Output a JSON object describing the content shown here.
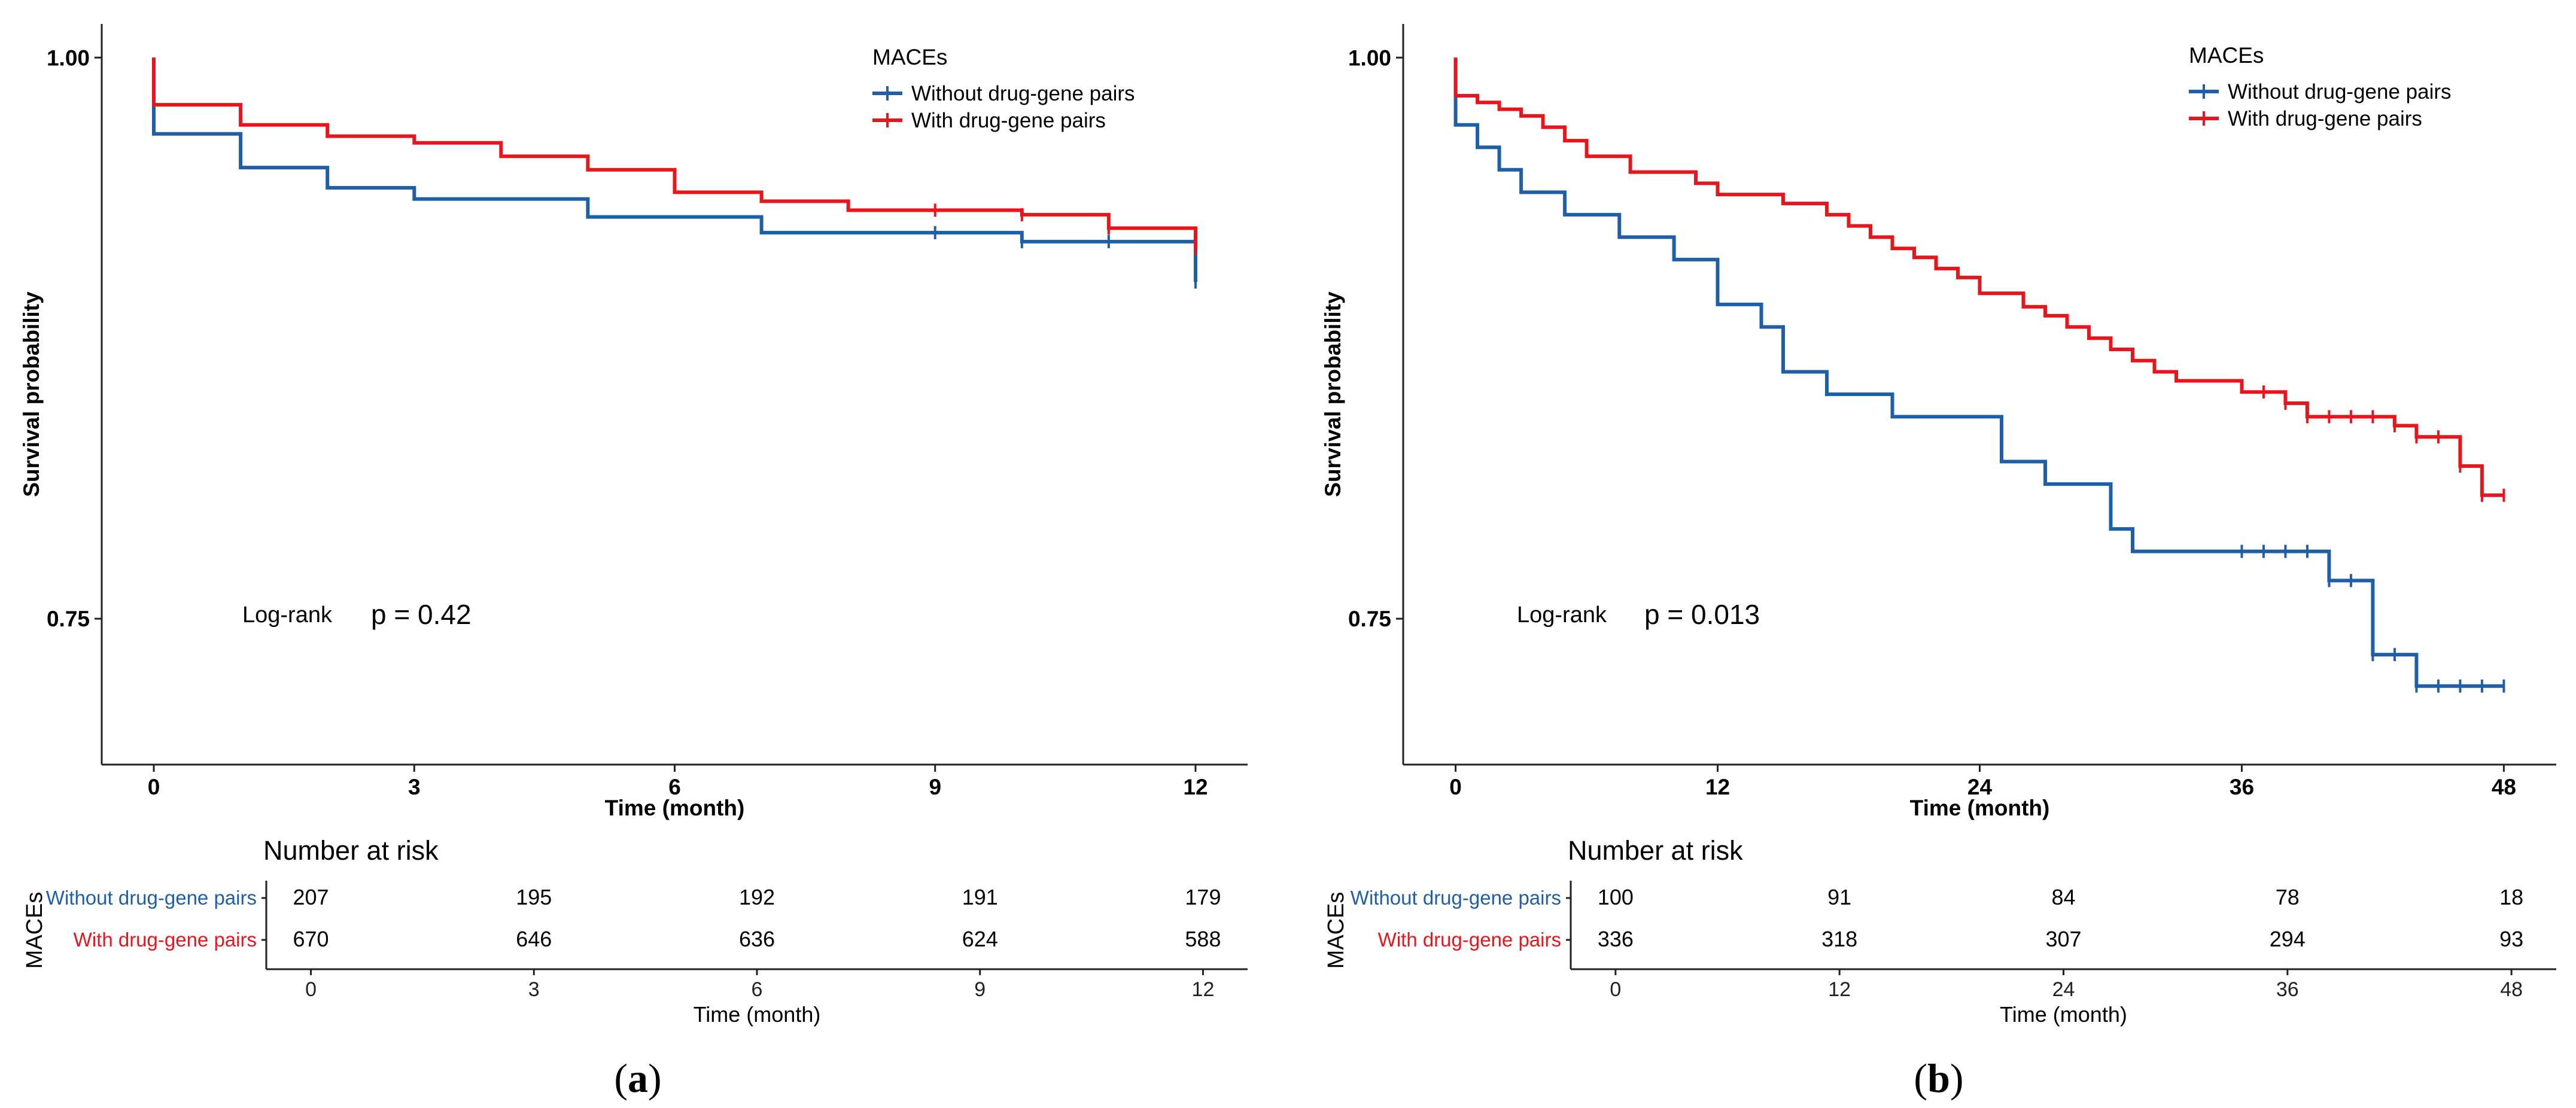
{
  "chart_data": [
    {
      "type": "line",
      "subtype": "kaplan-meier",
      "panel_label": "a",
      "xlabel": "Time (month)",
      "ylabel": "Survival probability",
      "xlim": [
        -0.6,
        12.6
      ],
      "ylim": [
        0.685,
        1.015
      ],
      "xticks": [
        0,
        3,
        6,
        9,
        12
      ],
      "yticks": [
        0.75,
        1.0
      ],
      "ytick_labels": [
        "0.75",
        "1.00"
      ],
      "legend_title": "MACEs",
      "annotation": {
        "test": "Log-rank",
        "p": "p = 0.42"
      },
      "series": [
        {
          "name": "Without drug-gene pairs",
          "color": "#1f5fa8",
          "steps": [
            [
              0,
              1.0
            ],
            [
              0,
              0.966
            ],
            [
              1,
              0.966
            ],
            [
              1,
              0.951
            ],
            [
              2,
              0.951
            ],
            [
              2,
              0.942
            ],
            [
              3,
              0.942
            ],
            [
              3,
              0.937
            ],
            [
              5,
              0.937
            ],
            [
              5,
              0.929
            ],
            [
              7,
              0.929
            ],
            [
              7,
              0.922
            ],
            [
              10,
              0.922
            ],
            [
              10,
              0.918
            ],
            [
              12,
              0.918
            ],
            [
              12,
              0.9
            ]
          ],
          "censors": [
            [
              9,
              0.922
            ],
            [
              10,
              0.918
            ],
            [
              11,
              0.918
            ],
            [
              12,
              0.9
            ]
          ]
        },
        {
          "name": "With drug-gene pairs",
          "color": "#e8161c",
          "steps": [
            [
              0,
              1.0
            ],
            [
              0,
              0.979
            ],
            [
              1,
              0.979
            ],
            [
              1,
              0.97
            ],
            [
              2,
              0.97
            ],
            [
              2,
              0.965
            ],
            [
              3,
              0.965
            ],
            [
              3,
              0.962
            ],
            [
              4,
              0.962
            ],
            [
              4,
              0.956
            ],
            [
              5,
              0.956
            ],
            [
              5,
              0.95
            ],
            [
              6,
              0.95
            ],
            [
              6,
              0.94
            ],
            [
              7,
              0.94
            ],
            [
              7,
              0.936
            ],
            [
              8,
              0.936
            ],
            [
              8,
              0.932
            ],
            [
              10,
              0.932
            ],
            [
              10,
              0.93
            ],
            [
              11,
              0.93
            ],
            [
              11,
              0.924
            ],
            [
              12,
              0.924
            ],
            [
              12,
              0.915
            ]
          ],
          "censors": [
            [
              9,
              0.932
            ],
            [
              10,
              0.93
            ],
            [
              11,
              0.924
            ],
            [
              12,
              0.915
            ]
          ]
        }
      ],
      "risk_table": {
        "title": "Number at risk",
        "group_label": "MACEs",
        "xlabel": "Time (month)",
        "times": [
          0,
          3,
          6,
          9,
          12
        ],
        "rows": [
          {
            "name": "Without drug-gene pairs",
            "color": "#1f5fa8",
            "values": [
              207,
              195,
              192,
              191,
              179
            ]
          },
          {
            "name": "With drug-gene pairs",
            "color": "#e8161c",
            "values": [
              670,
              646,
              636,
              624,
              588
            ]
          }
        ]
      }
    },
    {
      "type": "line",
      "subtype": "kaplan-meier",
      "panel_label": "b",
      "xlabel": "Time (month)",
      "ylabel": "Survival probability",
      "xlim": [
        -2.4,
        50.4
      ],
      "ylim": [
        0.685,
        1.015
      ],
      "xticks": [
        0,
        12,
        24,
        36,
        48
      ],
      "yticks": [
        0.75,
        1.0
      ],
      "ytick_labels": [
        "0.75",
        "1.00"
      ],
      "legend_title": "MACEs",
      "annotation": {
        "test": "Log-rank",
        "p": "p = 0.013"
      },
      "series": [
        {
          "name": "Without drug-gene pairs",
          "color": "#1f5fa8",
          "steps": [
            [
              0,
              1.0
            ],
            [
              0,
              0.97
            ],
            [
              1,
              0.97
            ],
            [
              1,
              0.96
            ],
            [
              2,
              0.96
            ],
            [
              2,
              0.95
            ],
            [
              3,
              0.95
            ],
            [
              3,
              0.94
            ],
            [
              5,
              0.94
            ],
            [
              5,
              0.93
            ],
            [
              7.5,
              0.93
            ],
            [
              7.5,
              0.92
            ],
            [
              10,
              0.92
            ],
            [
              10,
              0.91
            ],
            [
              12,
              0.91
            ],
            [
              12,
              0.89
            ],
            [
              14,
              0.89
            ],
            [
              14,
              0.88
            ],
            [
              15,
              0.88
            ],
            [
              15,
              0.86
            ],
            [
              17,
              0.86
            ],
            [
              17,
              0.85
            ],
            [
              20,
              0.85
            ],
            [
              20,
              0.84
            ],
            [
              25,
              0.84
            ],
            [
              25,
              0.82
            ],
            [
              27,
              0.82
            ],
            [
              27,
              0.81
            ],
            [
              30,
              0.81
            ],
            [
              30,
              0.79
            ],
            [
              31,
              0.79
            ],
            [
              31,
              0.78
            ],
            [
              40,
              0.78
            ],
            [
              40,
              0.767
            ],
            [
              42,
              0.767
            ],
            [
              42,
              0.734
            ],
            [
              44,
              0.734
            ],
            [
              44,
              0.72
            ],
            [
              48,
              0.72
            ]
          ],
          "censors": [
            [
              36,
              0.78
            ],
            [
              37,
              0.78
            ],
            [
              38,
              0.78
            ],
            [
              39,
              0.78
            ],
            [
              40,
              0.767
            ],
            [
              41,
              0.767
            ],
            [
              42,
              0.734
            ],
            [
              43,
              0.734
            ],
            [
              44,
              0.72
            ],
            [
              45,
              0.72
            ],
            [
              46,
              0.72
            ],
            [
              47,
              0.72
            ],
            [
              48,
              0.72
            ]
          ]
        },
        {
          "name": "With drug-gene pairs",
          "color": "#e8161c",
          "steps": [
            [
              0,
              1.0
            ],
            [
              0,
              0.983
            ],
            [
              1,
              0.983
            ],
            [
              1,
              0.98
            ],
            [
              2,
              0.98
            ],
            [
              2,
              0.977
            ],
            [
              3,
              0.977
            ],
            [
              3,
              0.974
            ],
            [
              4,
              0.974
            ],
            [
              4,
              0.969
            ],
            [
              5,
              0.969
            ],
            [
              5,
              0.963
            ],
            [
              6,
              0.963
            ],
            [
              6,
              0.956
            ],
            [
              8,
              0.956
            ],
            [
              8,
              0.949
            ],
            [
              11,
              0.949
            ],
            [
              11,
              0.944
            ],
            [
              12,
              0.944
            ],
            [
              12,
              0.939
            ],
            [
              15,
              0.939
            ],
            [
              15,
              0.935
            ],
            [
              17,
              0.935
            ],
            [
              17,
              0.93
            ],
            [
              18,
              0.93
            ],
            [
              18,
              0.925
            ],
            [
              19,
              0.925
            ],
            [
              19,
              0.92
            ],
            [
              20,
              0.92
            ],
            [
              20,
              0.915
            ],
            [
              21,
              0.915
            ],
            [
              21,
              0.911
            ],
            [
              22,
              0.911
            ],
            [
              22,
              0.906
            ],
            [
              23,
              0.906
            ],
            [
              23,
              0.902
            ],
            [
              24,
              0.902
            ],
            [
              24,
              0.895
            ],
            [
              26,
              0.895
            ],
            [
              26,
              0.889
            ],
            [
              27,
              0.889
            ],
            [
              27,
              0.885
            ],
            [
              28,
              0.885
            ],
            [
              28,
              0.88
            ],
            [
              29,
              0.88
            ],
            [
              29,
              0.875
            ],
            [
              30,
              0.875
            ],
            [
              30,
              0.87
            ],
            [
              31,
              0.87
            ],
            [
              31,
              0.865
            ],
            [
              32,
              0.865
            ],
            [
              32,
              0.86
            ],
            [
              33,
              0.86
            ],
            [
              33,
              0.856
            ],
            [
              36,
              0.856
            ],
            [
              36,
              0.851
            ],
            [
              38,
              0.851
            ],
            [
              38,
              0.846
            ],
            [
              39,
              0.846
            ],
            [
              39,
              0.84
            ],
            [
              43,
              0.84
            ],
            [
              43,
              0.836
            ],
            [
              44,
              0.836
            ],
            [
              44,
              0.831
            ],
            [
              46,
              0.831
            ],
            [
              46,
              0.818
            ],
            [
              47,
              0.818
            ],
            [
              47,
              0.805
            ],
            [
              48,
              0.805
            ]
          ],
          "censors": [
            [
              37,
              0.851
            ],
            [
              38,
              0.846
            ],
            [
              39,
              0.84
            ],
            [
              40,
              0.84
            ],
            [
              41,
              0.84
            ],
            [
              42,
              0.84
            ],
            [
              43,
              0.836
            ],
            [
              44,
              0.831
            ],
            [
              45,
              0.831
            ],
            [
              46,
              0.818
            ],
            [
              47,
              0.805
            ],
            [
              48,
              0.805
            ]
          ]
        }
      ],
      "risk_table": {
        "title": "Number at risk",
        "group_label": "MACEs",
        "xlabel": "Time (month)",
        "times": [
          0,
          12,
          24,
          36,
          48
        ],
        "rows": [
          {
            "name": "Without drug-gene pairs",
            "color": "#1f5fa8",
            "values": [
              100,
              91,
              84,
              78,
              18
            ]
          },
          {
            "name": "With drug-gene pairs",
            "color": "#e8161c",
            "values": [
              336,
              318,
              307,
              294,
              93
            ]
          }
        ]
      }
    }
  ]
}
